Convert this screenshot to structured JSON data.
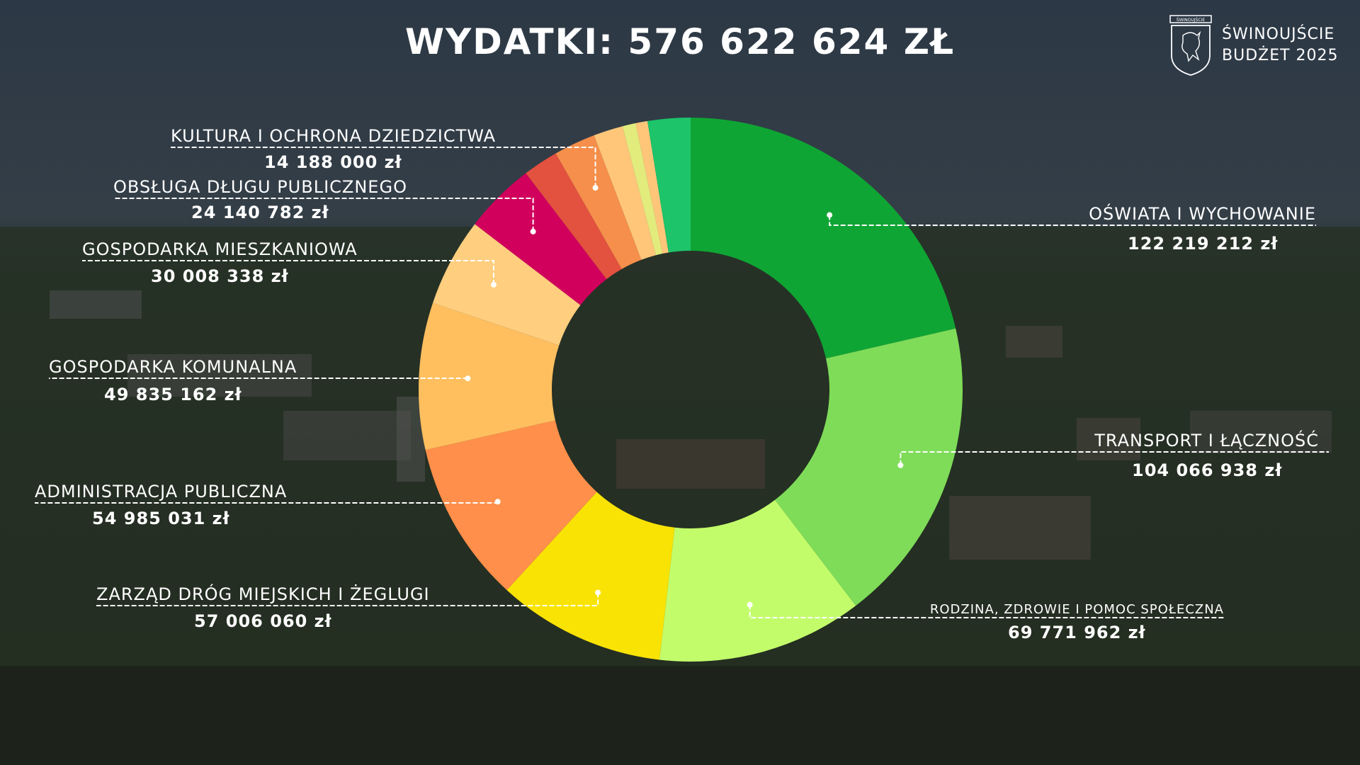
{
  "header": {
    "title": "WYDATKI: 576 622 624 ZŁ",
    "brand_line1": "ŚWINOUJŚCIE",
    "brand_line2": "BUDŻET 2025",
    "crest_text": "ŚWINOUJŚCIE"
  },
  "colors": {
    "background": "#2a2f30",
    "title": "#ffffff",
    "leader": "#ffffff"
  },
  "chart_data": {
    "type": "pie",
    "title": "WYDATKI: 576 622 624 ZŁ",
    "donut": true,
    "start": "top",
    "direction": "clockwise",
    "total": 576622624,
    "slices": [
      {
        "label": "OŚWIATA I WYCHOWANIE",
        "value": 122219212,
        "value_text": "122 219 212 zł",
        "color": "#0fa534"
      },
      {
        "label": "TRANSPORT I ŁĄCZNOŚĆ",
        "value": 104066938,
        "value_text": "104 066 938 zł",
        "color": "#7fdc59"
      },
      {
        "label": "RODZINA, ZDROWIE I POMOC SPOŁECZNA",
        "value": 69771962,
        "value_text": "69 771 962 zł",
        "color": "#c3fc6b"
      },
      {
        "label": "ZARZĄD DRÓG MIEJSKICH I ŻEGLUGI",
        "value": 57006060,
        "value_text": "57 006 060 zł",
        "color": "#f9e305"
      },
      {
        "label": "ADMINISTRACJA PUBLICZNA",
        "value": 54985031,
        "value_text": "54 985 031 zł",
        "color": "#ff8f4a"
      },
      {
        "label": "GOSPODARKA KOMUNALNA",
        "value": 49835162,
        "value_text": "49 835 162 zł",
        "color": "#ffbf5f"
      },
      {
        "label": "GOSPODARKA MIESZKANIOWA",
        "value": 30008338,
        "value_text": "30 008 338 zł",
        "color": "#ffce7e"
      },
      {
        "label": "OBSŁUGA DŁUGU PUBLICZNEGO",
        "value": 24140782,
        "value_text": "24 140 782 zł",
        "color": "#d1005c"
      },
      {
        "label": "",
        "value": 12000000,
        "value_text": "",
        "color": "#e3513f"
      },
      {
        "label": "KULTURA I OCHRONA DZIEDZICTWA",
        "value": 14188000,
        "value_text": "14 188 000 zł",
        "color": "#f58f4b"
      },
      {
        "label": "",
        "value": 10000000,
        "value_text": "",
        "color": "#ffc67a"
      },
      {
        "label": "",
        "value": 4500000,
        "value_text": "",
        "color": "#e2ec7c"
      },
      {
        "label": "",
        "value": 4000000,
        "value_text": "",
        "color": "#ffc67a"
      },
      {
        "label": "",
        "value": 14500000,
        "value_text": "",
        "color": "#1dc46a"
      }
    ]
  }
}
